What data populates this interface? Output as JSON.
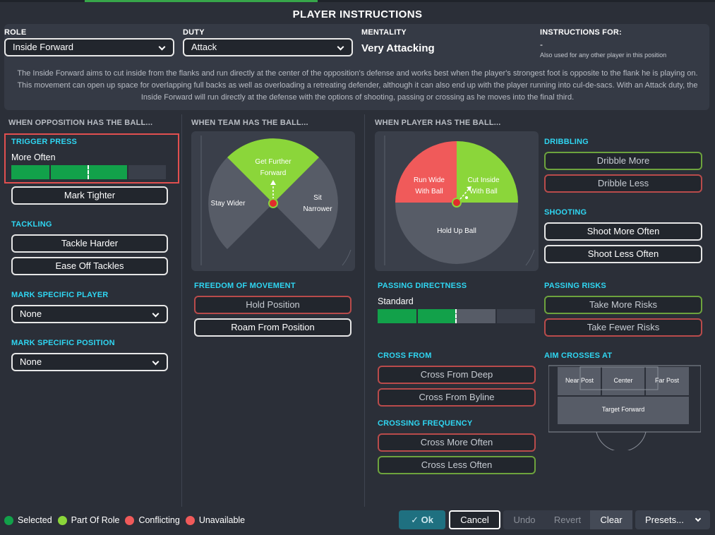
{
  "title": "PLAYER INSTRUCTIONS",
  "header": {
    "role_label": "ROLE",
    "role_value": "Inside Forward",
    "duty_label": "DUTY",
    "duty_value": "Attack",
    "mentality_label": "MENTALITY",
    "mentality_value": "Very Attacking",
    "instructions_label": "INSTRUCTIONS FOR:",
    "instructions_value": "-",
    "instructions_sub": "Also used for any other player in this position",
    "description": "The Inside Forward aims to cut inside from the flanks and run directly at the center of the opposition's defense and works best when the player's strongest foot is opposite to the flank he is playing on. This movement can open up space for overlapping full backs as well as overloading a retreating defender, although it can also end up with the player running into cul-de-sacs. With an Attack duty, the Inside Forward will run directly at the defense with the options of shooting, passing or crossing as he moves into the final third."
  },
  "opposition": {
    "heading": "WHEN OPPOSITION HAS THE BALL...",
    "trigger_press": {
      "label": "TRIGGER PRESS",
      "value": "More Often",
      "level_fraction": 0.75
    },
    "mark_tighter": "Mark Tighter",
    "tackling": {
      "label": "TACKLING",
      "options": [
        "Tackle Harder",
        "Ease Off Tackles"
      ]
    },
    "mark_specific_player": {
      "label": "MARK SPECIFIC PLAYER",
      "value": "None"
    },
    "mark_specific_position": {
      "label": "MARK SPECIFIC POSITION",
      "value": "None"
    }
  },
  "team_ball": {
    "heading": "WHEN TEAM HAS THE BALL...",
    "pitch": {
      "forward": "Get Further Forward",
      "wider": "Stay Wider",
      "narrower": "Sit Narrower"
    },
    "freedom": {
      "label": "FREEDOM OF MOVEMENT",
      "options": [
        "Hold Position",
        "Roam From Position"
      ]
    }
  },
  "player_ball": {
    "heading": "WHEN PLAYER HAS THE BALL...",
    "pitch": {
      "run_wide": "Run Wide With Ball",
      "cut_inside": "Cut Inside With Ball",
      "hold_up": "Hold Up Ball"
    },
    "dribbling": {
      "label": "DRIBBLING",
      "options": [
        "Dribble More",
        "Dribble Less"
      ]
    },
    "shooting": {
      "label": "SHOOTING",
      "options": [
        "Shoot More Often",
        "Shoot Less Often"
      ]
    },
    "passing_directness": {
      "label": "PASSING DIRECTNESS",
      "value": "Standard",
      "level_fraction": 0.5
    },
    "passing_risks": {
      "label": "PASSING RISKS",
      "options": [
        "Take More Risks",
        "Take Fewer Risks"
      ]
    },
    "cross_from": {
      "label": "CROSS FROM",
      "options": [
        "Cross From Deep",
        "Cross From Byline"
      ]
    },
    "aim_crosses": {
      "label": "AIM CROSSES AT",
      "near": "Near Post",
      "center": "Center",
      "far": "Far Post",
      "target": "Target Forward"
    },
    "crossing_frequency": {
      "label": "CROSSING FREQUENCY",
      "options": [
        "Cross More Often",
        "Cross Less Often"
      ]
    }
  },
  "legend": {
    "selected": "Selected",
    "part_of_role": "Part Of Role",
    "conflicting": "Conflicting",
    "unavailable": "Unavailable"
  },
  "footer": {
    "ok": "Ok",
    "cancel": "Cancel",
    "undo": "Undo",
    "revert": "Revert",
    "clear": "Clear",
    "presets": "Presets..."
  },
  "colors": {
    "selected": "#12a14a",
    "part_of_role": "#8bd63a",
    "conflicting": "#f05a5a",
    "unavailable": "#f05a5a",
    "accent": "#2fd6f2"
  }
}
